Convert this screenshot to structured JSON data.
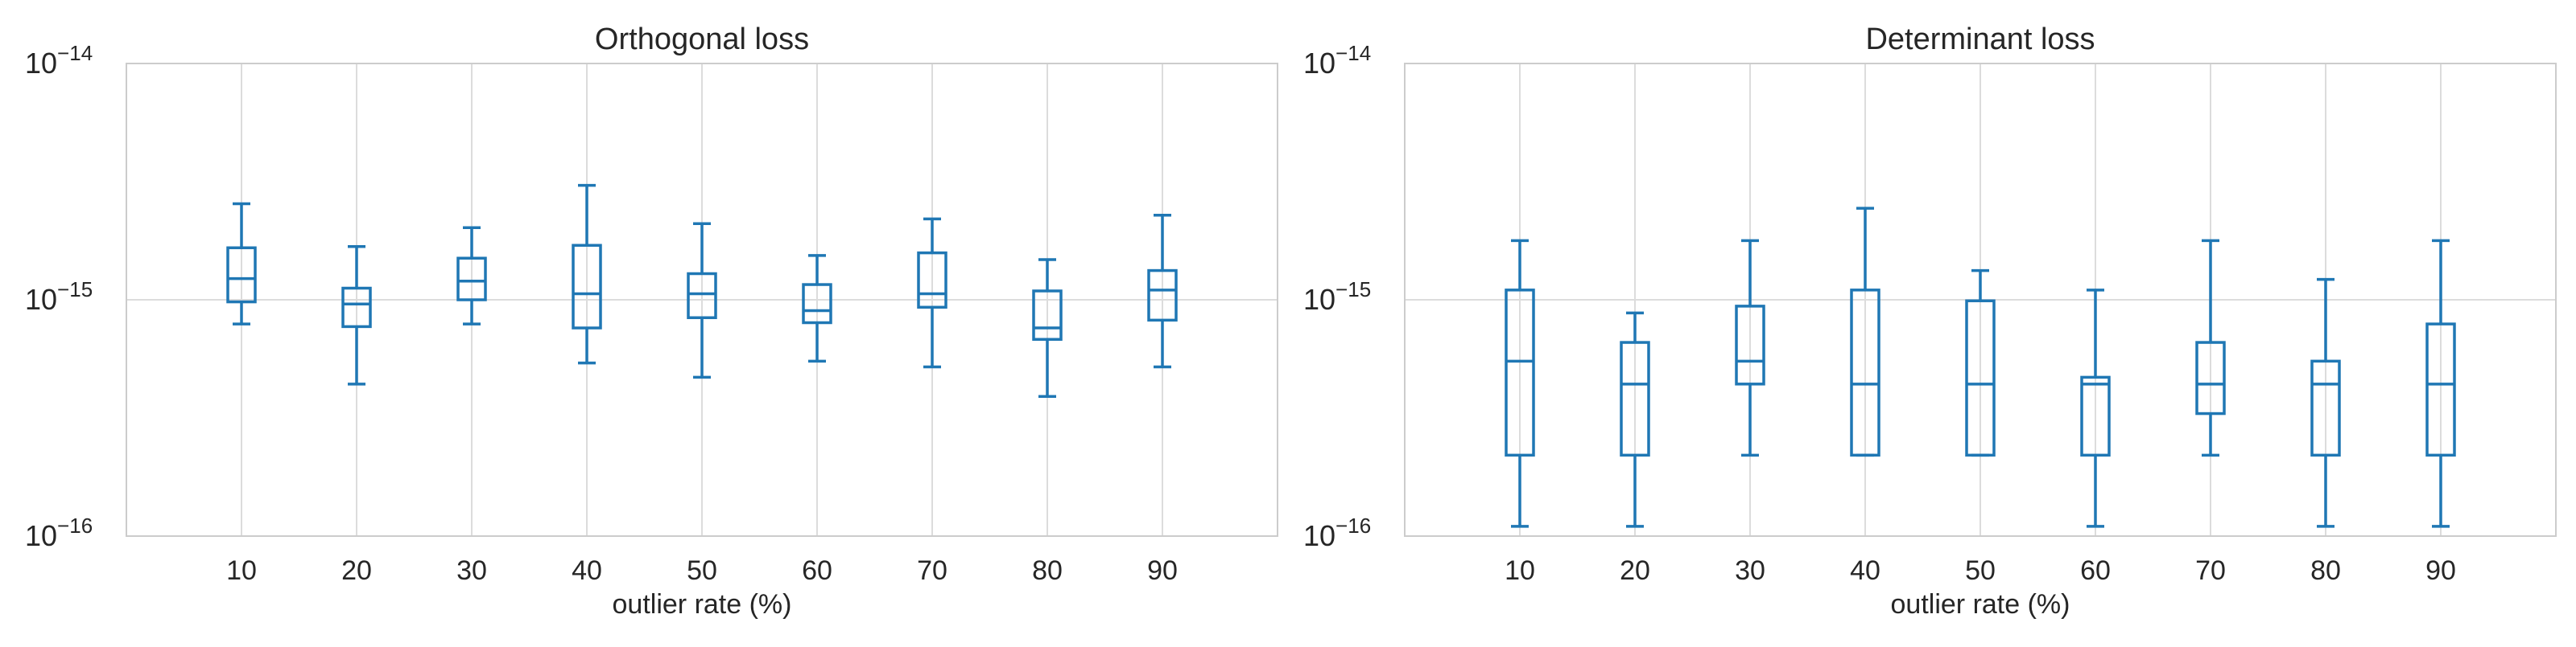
{
  "chart_data": [
    {
      "type": "box",
      "title": "Orthogonal loss",
      "xlabel": "outlier rate (%)",
      "ylabel": "",
      "yscale": "log",
      "ylim": [
        1e-16,
        1e-14
      ],
      "yticks": [
        {
          "base": "10",
          "exp": "−16"
        },
        {
          "base": "10",
          "exp": "−15"
        },
        {
          "base": "10",
          "exp": "−14"
        }
      ],
      "grid": true,
      "color": "#1f77b4",
      "categories": [
        "10",
        "20",
        "30",
        "40",
        "50",
        "60",
        "70",
        "80",
        "90"
      ],
      "boxes": [
        {
          "whislo": 7.9e-16,
          "q1": 9.8e-16,
          "med": 1.23e-15,
          "q3": 1.66e-15,
          "whishi": 2.55e-15
        },
        {
          "whislo": 4.4e-16,
          "q1": 7.7e-16,
          "med": 9.6e-16,
          "q3": 1.12e-15,
          "whishi": 1.68e-15
        },
        {
          "whislo": 7.9e-16,
          "q1": 1e-15,
          "med": 1.2e-15,
          "q3": 1.5e-15,
          "whishi": 2.02e-15
        },
        {
          "whislo": 5.4e-16,
          "q1": 7.6e-16,
          "med": 1.06e-15,
          "q3": 1.7e-15,
          "whishi": 3.05e-15
        },
        {
          "whislo": 4.7e-16,
          "q1": 8.4e-16,
          "med": 1.06e-15,
          "q3": 1.29e-15,
          "whishi": 2.1e-15
        },
        {
          "whislo": 5.5e-16,
          "q1": 8e-16,
          "med": 9e-16,
          "q3": 1.16e-15,
          "whishi": 1.54e-15
        },
        {
          "whislo": 5.2e-16,
          "q1": 9.3e-16,
          "med": 1.06e-15,
          "q3": 1.58e-15,
          "whishi": 2.2e-15
        },
        {
          "whislo": 3.9e-16,
          "q1": 6.8e-16,
          "med": 7.6e-16,
          "q3": 1.09e-15,
          "whishi": 1.48e-15
        },
        {
          "whislo": 5.2e-16,
          "q1": 8.2e-16,
          "med": 1.1e-15,
          "q3": 1.33e-15,
          "whishi": 2.28e-15
        }
      ]
    },
    {
      "type": "box",
      "title": "Determinant loss",
      "xlabel": "outlier rate (%)",
      "ylabel": "",
      "yscale": "log",
      "ylim": [
        1e-16,
        1e-14
      ],
      "yticks": [
        {
          "base": "10",
          "exp": "−16"
        },
        {
          "base": "10",
          "exp": "−15"
        },
        {
          "base": "10",
          "exp": "−14"
        }
      ],
      "grid": true,
      "color": "#1f77b4",
      "categories": [
        "10",
        "20",
        "30",
        "40",
        "50",
        "60",
        "70",
        "80",
        "90"
      ],
      "boxes": [
        {
          "whislo": 1.1e-16,
          "q1": 2.2e-16,
          "med": 5.5e-16,
          "q3": 1.1e-15,
          "whishi": 1.78e-15
        },
        {
          "whislo": 1.1e-16,
          "q1": 2.2e-16,
          "med": 4.4e-16,
          "q3": 6.6e-16,
          "whishi": 8.8e-16
        },
        {
          "whislo": 2.2e-16,
          "q1": 4.4e-16,
          "med": 5.5e-16,
          "q3": 9.4e-16,
          "whishi": 1.78e-15
        },
        {
          "whislo": 2.2e-16,
          "q1": 2.2e-16,
          "med": 4.4e-16,
          "q3": 1.1e-15,
          "whishi": 2.44e-15
        },
        {
          "whislo": 2.2e-16,
          "q1": 2.2e-16,
          "med": 4.4e-16,
          "q3": 9.9e-16,
          "whishi": 1.33e-15
        },
        {
          "whislo": 1.1e-16,
          "q1": 2.2e-16,
          "med": 4.4e-16,
          "q3": 4.7e-16,
          "whishi": 1.1e-15
        },
        {
          "whislo": 2.2e-16,
          "q1": 3.3e-16,
          "med": 4.4e-16,
          "q3": 6.6e-16,
          "whishi": 1.78e-15
        },
        {
          "whislo": 1.1e-16,
          "q1": 2.2e-16,
          "med": 4.4e-16,
          "q3": 5.5e-16,
          "whishi": 1.22e-15
        },
        {
          "whislo": 1.1e-16,
          "q1": 2.2e-16,
          "med": 4.4e-16,
          "q3": 7.9e-16,
          "whishi": 1.78e-15
        }
      ]
    }
  ]
}
